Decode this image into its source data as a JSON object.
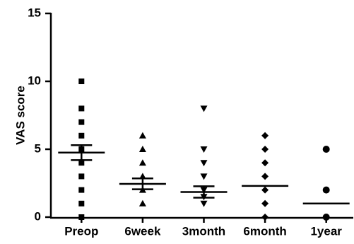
{
  "chart_data": {
    "type": "dot",
    "y_label": "VAS score",
    "color": "#000000",
    "ylim": [
      0,
      15
    ],
    "yticks": [
      0,
      5,
      10,
      15
    ],
    "groups": [
      {
        "name": "Preop",
        "marker": "square",
        "values": [
          10,
          8,
          7,
          6,
          5,
          4,
          3,
          2,
          1,
          0
        ],
        "mean": 4.75,
        "sem": 0.55
      },
      {
        "name": "6week",
        "marker": "triangle-up",
        "values": [
          6,
          5,
          4,
          3,
          2,
          1
        ],
        "mean": 2.45,
        "sem": 0.4
      },
      {
        "name": "3month",
        "marker": "triangle-down",
        "values": [
          8,
          5,
          4,
          3,
          2,
          1.5,
          1
        ],
        "mean": 1.85,
        "sem": 0.42
      },
      {
        "name": "6month",
        "marker": "diamond",
        "values": [
          6,
          5,
          4,
          3,
          2,
          1,
          0
        ],
        "mean": 2.3,
        "sem": null
      },
      {
        "name": "1year",
        "marker": "circle",
        "values": [
          5,
          2,
          0
        ],
        "mean": 1,
        "sem": null
      }
    ]
  }
}
